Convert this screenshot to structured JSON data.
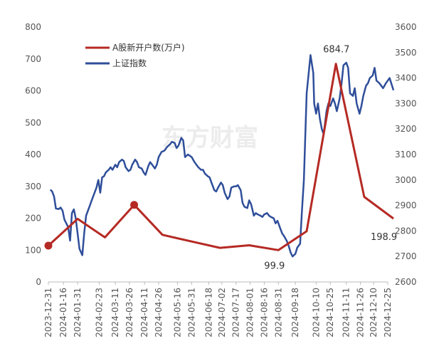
{
  "watermark": "东方财富",
  "colors": {
    "series_red": "#b52a24",
    "series_blue": "#2f4e9a",
    "axis": "#bbbbbb",
    "tick_text": "#555555"
  },
  "chart_data": {
    "type": "line",
    "title": "",
    "legend_position": "top-left",
    "grid": false,
    "x_labels": [
      "2023-12-31",
      "2024-01-16",
      "2024-01-31",
      "2024-02-23",
      "2024-03-11",
      "2024-03-26",
      "2024-04-11",
      "2024-04-26",
      "2024-05-16",
      "2024-05-31",
      "2024-06-18",
      "2024-07-02",
      "2024-07-17",
      "2024-08-01",
      "2024-08-16",
      "2024-08-31",
      "2024-09-18",
      "2024-10-10",
      "2024-10-25",
      "2024-11-11",
      "2024-11-26",
      "2024-12-10",
      "2024-12-25"
    ],
    "y_left": {
      "ticks": [
        0,
        100,
        200,
        300,
        400,
        500,
        600,
        700,
        800
      ],
      "range": [
        0,
        800
      ]
    },
    "y_right": {
      "ticks": [
        2600,
        2700,
        2800,
        2900,
        3000,
        3100,
        3200,
        3300,
        3400,
        3500,
        3600
      ],
      "range": [
        2600,
        3600
      ]
    },
    "series": [
      {
        "name": "A股新开户数(万户)",
        "axis": "left",
        "color": "#b52a24",
        "x": [
          "2023-12-31",
          "2024-01-31",
          "2024-02-29",
          "2024-03-31",
          "2024-04-30",
          "2024-05-31",
          "2024-06-30",
          "2024-07-31",
          "2024-08-31",
          "2024-09-30",
          "2024-10-31",
          "2024-11-30",
          "2024-12-31"
        ],
        "values": [
          114,
          198,
          140,
          242,
          148,
          127,
          107,
          115,
          99.9,
          159,
          684.7,
          267,
          198.9
        ],
        "markers": [
          0,
          3
        ]
      },
      {
        "name": "上证指数",
        "axis": "right",
        "color": "#2f4e9a",
        "points": [
          [
            "2024-01-02",
            2962
          ],
          [
            "2024-01-04",
            2955
          ],
          [
            "2024-01-06",
            2935
          ],
          [
            "2024-01-08",
            2888
          ],
          [
            "2024-01-11",
            2886
          ],
          [
            "2024-01-13",
            2892
          ],
          [
            "2024-01-15",
            2880
          ],
          [
            "2024-01-17",
            2845
          ],
          [
            "2024-01-19",
            2830
          ],
          [
            "2024-01-21",
            2815
          ],
          [
            "2024-01-23",
            2762
          ],
          [
            "2024-01-25",
            2870
          ],
          [
            "2024-01-27",
            2885
          ],
          [
            "2024-01-29",
            2850
          ],
          [
            "2024-01-31",
            2790
          ],
          [
            "2024-02-02",
            2730
          ],
          [
            "2024-02-05",
            2705
          ],
          [
            "2024-02-07",
            2790
          ],
          [
            "2024-02-09",
            2860
          ],
          [
            "2024-02-12",
            2890
          ],
          [
            "2024-02-15",
            2920
          ],
          [
            "2024-02-18",
            2950
          ],
          [
            "2024-02-20",
            2970
          ],
          [
            "2024-02-22",
            3000
          ],
          [
            "2024-02-24",
            2950
          ],
          [
            "2024-02-26",
            3010
          ],
          [
            "2024-02-28",
            3015
          ],
          [
            "2024-03-01",
            3030
          ],
          [
            "2024-03-04",
            3040
          ],
          [
            "2024-03-06",
            3050
          ],
          [
            "2024-03-08",
            3040
          ],
          [
            "2024-03-11",
            3060
          ],
          [
            "2024-03-13",
            3050
          ],
          [
            "2024-03-15",
            3070
          ],
          [
            "2024-03-18",
            3080
          ],
          [
            "2024-03-20",
            3075
          ],
          [
            "2024-03-22",
            3050
          ],
          [
            "2024-03-25",
            3035
          ],
          [
            "2024-03-27",
            3040
          ],
          [
            "2024-03-29",
            3060
          ],
          [
            "2024-04-01",
            3080
          ],
          [
            "2024-04-03",
            3070
          ],
          [
            "2024-04-05",
            3050
          ],
          [
            "2024-04-08",
            3045
          ],
          [
            "2024-04-10",
            3030
          ],
          [
            "2024-04-12",
            3020
          ],
          [
            "2024-04-15",
            3055
          ],
          [
            "2024-04-17",
            3070
          ],
          [
            "2024-04-19",
            3060
          ],
          [
            "2024-04-22",
            3045
          ],
          [
            "2024-04-24",
            3060
          ],
          [
            "2024-04-26",
            3090
          ],
          [
            "2024-04-29",
            3110
          ],
          [
            "2024-05-02",
            3115
          ],
          [
            "2024-05-05",
            3130
          ],
          [
            "2024-05-08",
            3140
          ],
          [
            "2024-05-10",
            3150
          ],
          [
            "2024-05-13",
            3145
          ],
          [
            "2024-05-15",
            3125
          ],
          [
            "2024-05-17",
            3135
          ],
          [
            "2024-05-20",
            3165
          ],
          [
            "2024-05-22",
            3155
          ],
          [
            "2024-05-24",
            3090
          ],
          [
            "2024-05-27",
            3100
          ],
          [
            "2024-05-29",
            3095
          ],
          [
            "2024-05-31",
            3090
          ],
          [
            "2024-06-03",
            3070
          ],
          [
            "2024-06-05",
            3060
          ],
          [
            "2024-06-07",
            3050
          ],
          [
            "2024-06-10",
            3040
          ],
          [
            "2024-06-12",
            3040
          ],
          [
            "2024-06-14",
            3025
          ],
          [
            "2024-06-17",
            3015
          ],
          [
            "2024-06-19",
            3010
          ],
          [
            "2024-06-21",
            2990
          ],
          [
            "2024-06-24",
            2960
          ],
          [
            "2024-06-26",
            2955
          ],
          [
            "2024-06-28",
            2970
          ],
          [
            "2024-07-01",
            2990
          ],
          [
            "2024-07-03",
            2980
          ],
          [
            "2024-07-05",
            2950
          ],
          [
            "2024-07-08",
            2925
          ],
          [
            "2024-07-10",
            2935
          ],
          [
            "2024-07-12",
            2970
          ],
          [
            "2024-07-15",
            2975
          ],
          [
            "2024-07-17",
            2975
          ],
          [
            "2024-07-19",
            2980
          ],
          [
            "2024-07-22",
            2960
          ],
          [
            "2024-07-24",
            2910
          ],
          [
            "2024-07-26",
            2895
          ],
          [
            "2024-07-29",
            2890
          ],
          [
            "2024-07-31",
            2920
          ],
          [
            "2024-08-02",
            2905
          ],
          [
            "2024-08-05",
            2860
          ],
          [
            "2024-08-07",
            2870
          ],
          [
            "2024-08-09",
            2865
          ],
          [
            "2024-08-12",
            2860
          ],
          [
            "2024-08-14",
            2855
          ],
          [
            "2024-08-16",
            2865
          ],
          [
            "2024-08-19",
            2870
          ],
          [
            "2024-08-21",
            2860
          ],
          [
            "2024-08-23",
            2855
          ],
          [
            "2024-08-26",
            2850
          ],
          [
            "2024-08-28",
            2830
          ],
          [
            "2024-08-30",
            2840
          ],
          [
            "2024-09-02",
            2810
          ],
          [
            "2024-09-04",
            2790
          ],
          [
            "2024-09-06",
            2780
          ],
          [
            "2024-09-09",
            2760
          ],
          [
            "2024-09-11",
            2740
          ],
          [
            "2024-09-13",
            2715
          ],
          [
            "2024-09-15",
            2700
          ],
          [
            "2024-09-18",
            2710
          ],
          [
            "2024-09-20",
            2735
          ],
          [
            "2024-09-23",
            2750
          ],
          [
            "2024-09-25",
            2880
          ],
          [
            "2024-09-27",
            3000
          ],
          [
            "2024-09-30",
            3340
          ],
          [
            "2024-10-04",
            3490
          ],
          [
            "2024-10-07",
            3420
          ],
          [
            "2024-10-08",
            3300
          ],
          [
            "2024-10-10",
            3260
          ],
          [
            "2024-10-12",
            3300
          ],
          [
            "2024-10-14",
            3240
          ],
          [
            "2024-10-16",
            3200
          ],
          [
            "2024-10-18",
            3180
          ],
          [
            "2024-10-21",
            3270
          ],
          [
            "2024-10-23",
            3300
          ],
          [
            "2024-10-25",
            3290
          ],
          [
            "2024-10-28",
            3320
          ],
          [
            "2024-10-30",
            3300
          ],
          [
            "2024-11-01",
            3270
          ],
          [
            "2024-11-04",
            3320
          ],
          [
            "2024-11-06",
            3380
          ],
          [
            "2024-11-08",
            3450
          ],
          [
            "2024-11-11",
            3460
          ],
          [
            "2024-11-13",
            3440
          ],
          [
            "2024-11-15",
            3340
          ],
          [
            "2024-11-18",
            3330
          ],
          [
            "2024-11-20",
            3360
          ],
          [
            "2024-11-22",
            3300
          ],
          [
            "2024-11-25",
            3260
          ],
          [
            "2024-11-27",
            3290
          ],
          [
            "2024-11-29",
            3330
          ],
          [
            "2024-12-02",
            3370
          ],
          [
            "2024-12-04",
            3380
          ],
          [
            "2024-12-06",
            3400
          ],
          [
            "2024-12-09",
            3410
          ],
          [
            "2024-12-11",
            3440
          ],
          [
            "2024-12-13",
            3390
          ],
          [
            "2024-12-16",
            3380
          ],
          [
            "2024-12-18",
            3370
          ],
          [
            "2024-12-20",
            3360
          ],
          [
            "2024-12-23",
            3380
          ],
          [
            "2024-12-25",
            3390
          ],
          [
            "2024-12-27",
            3400
          ],
          [
            "2024-12-31",
            3352
          ]
        ]
      }
    ],
    "annotations": [
      {
        "text": "684.7",
        "x": "2024-10-31",
        "y": 684.7
      },
      {
        "text": "99.9",
        "x": "2024-08-31",
        "y": 99.9
      },
      {
        "text": "198.9",
        "x": "2024-12-31",
        "y": 198.9
      }
    ]
  }
}
